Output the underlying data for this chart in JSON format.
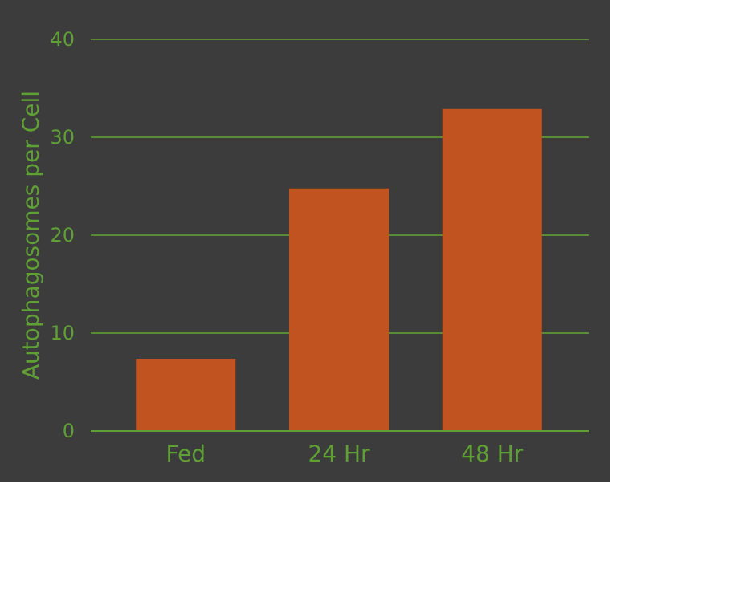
{
  "chart_data": {
    "type": "bar",
    "ylabel": "Autophagosomes per Cell",
    "categories": [
      "Fed",
      "24 Hr",
      "48 Hr"
    ],
    "values": [
      7.3,
      24.7,
      32.8
    ],
    "color": "#c0531f",
    "ylim": [
      0,
      40
    ],
    "yticks": [
      0,
      10,
      20,
      30,
      40
    ],
    "grid": "y"
  }
}
